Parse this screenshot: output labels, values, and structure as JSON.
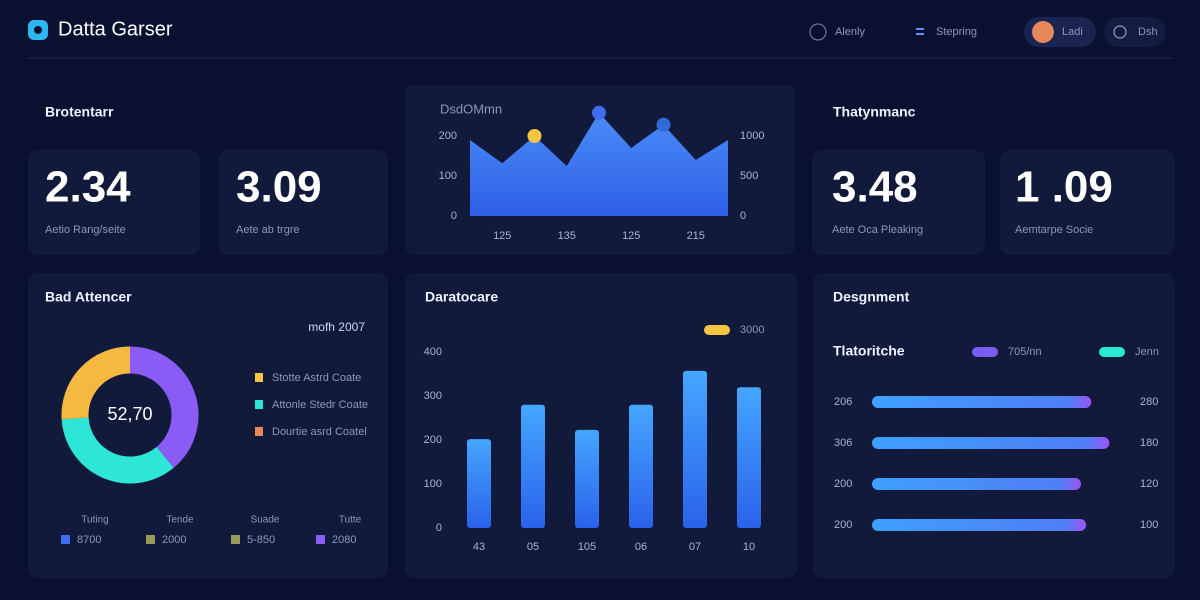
{
  "header": {
    "brand": "Datta Garser",
    "nav": [
      "Alenly",
      "Stepring"
    ],
    "user": "Ladi",
    "action": "Dsh"
  },
  "left_summary": {
    "title": "Brotentarr",
    "metrics": [
      {
        "value": "2.34",
        "label": "Aetio Rang/seite"
      },
      {
        "value": "3.09",
        "label": "Aete ab trgre"
      }
    ]
  },
  "right_summary": {
    "title": "Thatynmanc",
    "metrics": [
      {
        "value": "3.48",
        "label": "Aete Oca Pleaking"
      },
      {
        "value": "1 .09",
        "label": "Aemtarpe Socie"
      }
    ]
  },
  "area_chart": {
    "type": "area",
    "title": "DsdOMmn",
    "color": "#3f7bf5",
    "categories": [
      null,
      "125",
      null,
      "135",
      null,
      "125",
      null,
      "215",
      null
    ],
    "values": [
      190,
      132,
      200,
      125,
      258,
      170,
      228,
      140,
      190
    ],
    "markers": [
      {
        "index": 2,
        "color": "#f5c542"
      },
      {
        "index": 4,
        "color": "#3f6cf0"
      },
      {
        "index": 6,
        "color": "#2f6bd8"
      }
    ],
    "ylim": [
      0,
      260
    ],
    "yticks": [
      0,
      100,
      200
    ],
    "y2lim": [
      0,
      1300
    ],
    "y2ticks": [
      0,
      500,
      1000
    ]
  },
  "donut_chart": {
    "type": "pie",
    "title": "Bad Attencer",
    "note": "mofh 2007",
    "center_label": "52,70",
    "values": [
      39,
      35,
      26
    ],
    "colors": [
      "#8a5cf5",
      "#2ee6d6",
      "#f5b942"
    ],
    "legend": [
      {
        "name": "Stotte Astrd Coate",
        "color": "#f5c542"
      },
      {
        "name": "Attonle Stedr Coate",
        "color": "#2ee6d6"
      },
      {
        "name": "Dourtie asrd Coatel",
        "color": "#e8875a"
      }
    ],
    "stats": [
      {
        "label": "Tuting",
        "value": "8700",
        "color": "#3f6cf0"
      },
      {
        "label": "Tende",
        "value": "2000",
        "color": "#9a9a5a"
      },
      {
        "label": "Suade",
        "value": "5-850",
        "color": "#9a9a5a"
      },
      {
        "label": "Tutte",
        "value": "2080",
        "color": "#8a5cf5"
      }
    ]
  },
  "bar_chart": {
    "type": "bar",
    "title": "Daratocare",
    "legend": {
      "name": "3000",
      "color": "#f5c542"
    },
    "categories": [
      "43",
      "05",
      "105",
      "06",
      "07",
      "10"
    ],
    "values": [
      202,
      280,
      223,
      280,
      357,
      320
    ],
    "ylim": [
      0,
      400
    ],
    "yticks": [
      0,
      100,
      200,
      300,
      400
    ],
    "color": "#3f8af5"
  },
  "hbar_chart": {
    "type": "hbar",
    "title": "Desgnment",
    "subtitle": "Tlatoritche",
    "legend": [
      {
        "name": "705/nn",
        "color": "#7a5cf5"
      },
      {
        "name": "Jenn",
        "color": "#2ee6d6"
      }
    ],
    "row_labels": [
      "206",
      "306",
      "200",
      "200"
    ],
    "end_labels": [
      "280",
      "180",
      "120",
      "100"
    ],
    "values": [
      85,
      92,
      81,
      83
    ],
    "xlim": [
      0,
      100
    ]
  }
}
